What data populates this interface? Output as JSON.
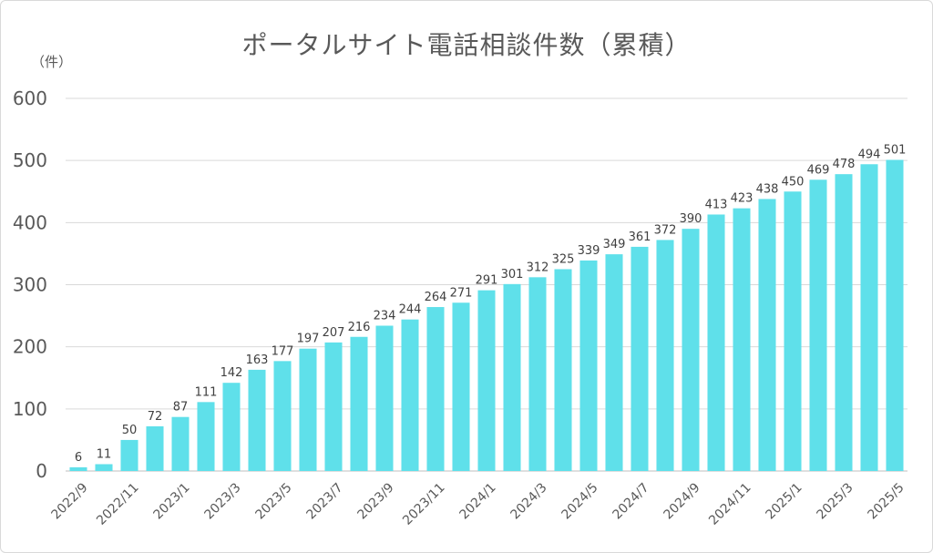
{
  "chart_data": {
    "type": "bar",
    "title": "ポータルサイト電話相談件数（累積）",
    "y_unit": "（件）",
    "xlabel": "",
    "ylabel": "",
    "ylim": [
      0,
      600
    ],
    "y_ticks": [
      0,
      100,
      200,
      300,
      400,
      500,
      600
    ],
    "grid": true,
    "legend": "none",
    "bar_color": "#5fe0ea",
    "categories": [
      "2022/9",
      "2022/10",
      "2022/11",
      "2022/12",
      "2023/1",
      "2023/2",
      "2023/3",
      "2023/4",
      "2023/5",
      "2023/6",
      "2023/7",
      "2023/8",
      "2023/9",
      "2023/10",
      "2023/11",
      "2023/12",
      "2024/1",
      "2024/2",
      "2024/3",
      "2024/4",
      "2024/5",
      "2024/6",
      "2024/7",
      "2024/8",
      "2024/9",
      "2024/10",
      "2024/11",
      "2024/12",
      "2025/1",
      "2025/2",
      "2025/3",
      "2025/4",
      "2025/5"
    ],
    "x_tick_labels": [
      "2022/9",
      "2022/11",
      "2023/1",
      "2023/3",
      "2023/5",
      "2023/7",
      "2023/9",
      "2023/11",
      "2024/1",
      "2024/3",
      "2024/5",
      "2024/7",
      "2024/9",
      "2024/11",
      "2025/1",
      "2025/3",
      "2025/5"
    ],
    "values": [
      6,
      11,
      50,
      72,
      87,
      111,
      142,
      163,
      177,
      197,
      207,
      216,
      234,
      244,
      264,
      271,
      291,
      301,
      312,
      325,
      339,
      349,
      361,
      372,
      390,
      413,
      423,
      438,
      450,
      469,
      478,
      494,
      501
    ]
  }
}
